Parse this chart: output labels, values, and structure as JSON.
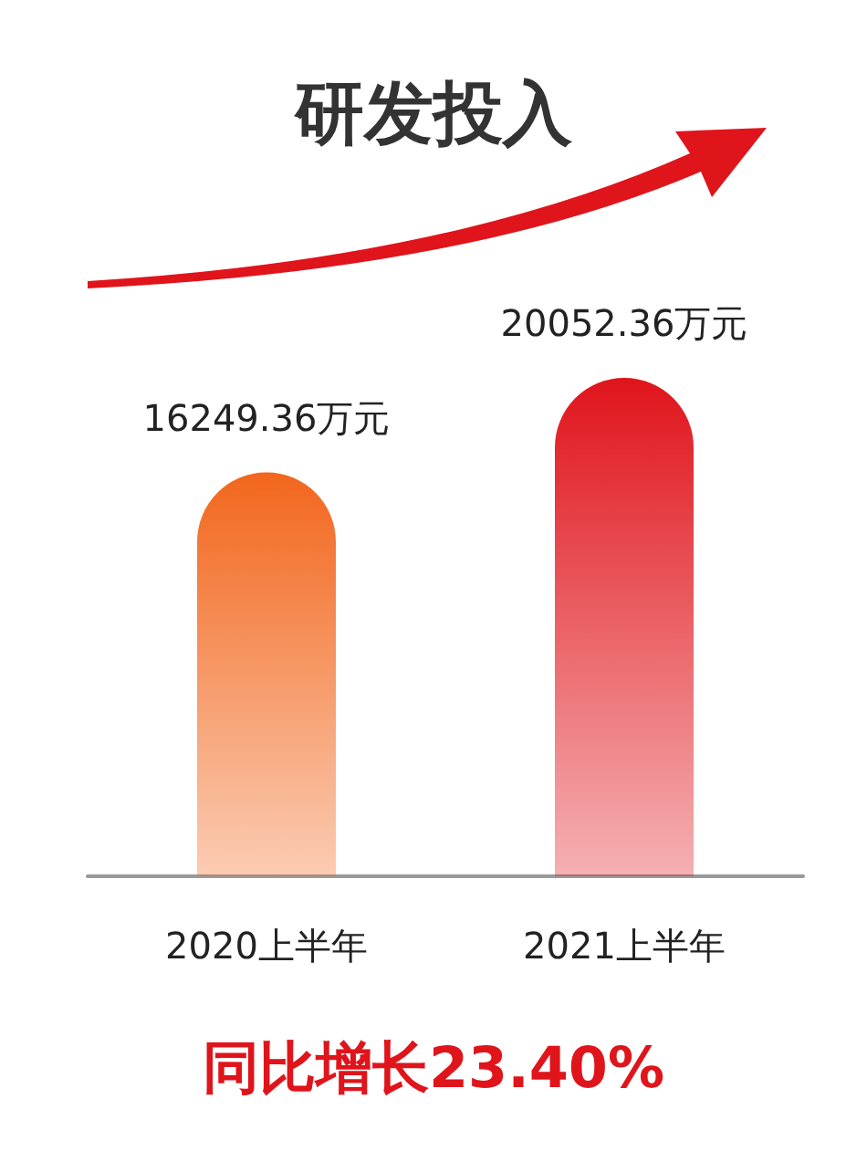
{
  "chart_data": {
    "type": "bar",
    "title": "研发投入",
    "categories": [
      "2020上半年",
      "2021上半年"
    ],
    "values": [
      16249.36,
      20052.36
    ],
    "colors": [
      "#f2661c",
      "#e0141b"
    ],
    "value_labels": [
      "16249.36万元",
      "20052.36万元"
    ],
    "annotations": [
      "同比增长23.40%"
    ]
  }
}
